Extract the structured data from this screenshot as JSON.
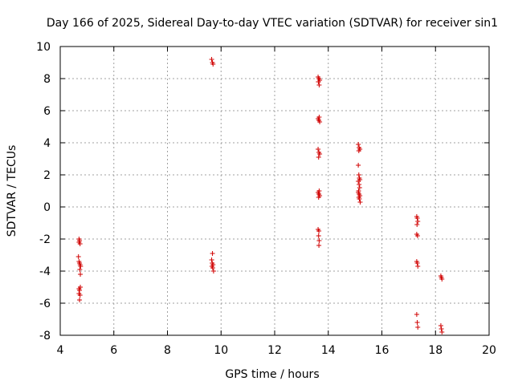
{
  "chart_data": {
    "type": "scatter",
    "title": "Day 166 of 2025, Sidereal Day-to-day VTEC variation (SDTVAR) for receiver sin1",
    "xlabel": "GPS time / hours",
    "ylabel": "SDTVAR / TECUs",
    "xlim": [
      4,
      20
    ],
    "ylim": [
      -8,
      10
    ],
    "xticks": [
      "4",
      "6",
      "8",
      "10",
      "12",
      "14",
      "16",
      "18",
      "20"
    ],
    "yticks": [
      "-8",
      "-6",
      "-4",
      "-2",
      "0",
      "2",
      "4",
      "6",
      "8",
      "10"
    ],
    "grid": true,
    "marker": "+",
    "color": "#d00000",
    "series": [
      {
        "name": "SDTVAR",
        "points": [
          [
            4.7,
            -2.0
          ],
          [
            4.72,
            -2.1
          ],
          [
            4.74,
            -2.3
          ],
          [
            4.7,
            -2.2
          ],
          [
            4.68,
            -3.1
          ],
          [
            4.7,
            -3.4
          ],
          [
            4.72,
            -3.5
          ],
          [
            4.74,
            -3.6
          ],
          [
            4.76,
            -3.7
          ],
          [
            4.73,
            -3.9
          ],
          [
            4.75,
            -4.2
          ],
          [
            4.7,
            -5.1
          ],
          [
            4.72,
            -5.2
          ],
          [
            4.75,
            -5.0
          ],
          [
            4.7,
            -5.4
          ],
          [
            4.74,
            -5.5
          ],
          [
            4.72,
            -5.8
          ],
          [
            9.65,
            9.2
          ],
          [
            9.68,
            9.0
          ],
          [
            9.7,
            8.9
          ],
          [
            9.68,
            -2.9
          ],
          [
            9.65,
            -3.3
          ],
          [
            9.67,
            -3.5
          ],
          [
            9.7,
            -3.6
          ],
          [
            9.66,
            -3.7
          ],
          [
            9.69,
            -3.8
          ],
          [
            9.72,
            -4.0
          ],
          [
            13.62,
            8.1
          ],
          [
            13.65,
            8.0
          ],
          [
            13.68,
            7.9
          ],
          [
            13.63,
            7.8
          ],
          [
            13.66,
            7.6
          ],
          [
            13.62,
            5.5
          ],
          [
            13.65,
            5.4
          ],
          [
            13.68,
            5.3
          ],
          [
            13.66,
            5.6
          ],
          [
            13.62,
            3.6
          ],
          [
            13.65,
            3.4
          ],
          [
            13.68,
            3.3
          ],
          [
            13.64,
            3.1
          ],
          [
            13.62,
            0.9
          ],
          [
            13.65,
            0.8
          ],
          [
            13.68,
            0.7
          ],
          [
            13.64,
            0.6
          ],
          [
            13.66,
            1.0
          ],
          [
            13.62,
            -1.4
          ],
          [
            13.65,
            -1.5
          ],
          [
            13.64,
            -1.8
          ],
          [
            13.66,
            -2.1
          ],
          [
            13.65,
            -2.4
          ],
          [
            15.12,
            3.9
          ],
          [
            15.15,
            3.7
          ],
          [
            15.18,
            3.6
          ],
          [
            15.14,
            3.5
          ],
          [
            15.12,
            2.6
          ],
          [
            15.14,
            2.0
          ],
          [
            15.16,
            1.8
          ],
          [
            15.18,
            1.7
          ],
          [
            15.12,
            1.6
          ],
          [
            15.15,
            1.4
          ],
          [
            15.17,
            1.2
          ],
          [
            15.13,
            1.0
          ],
          [
            15.12,
            0.9
          ],
          [
            15.15,
            0.8
          ],
          [
            15.18,
            0.7
          ],
          [
            15.14,
            0.6
          ],
          [
            15.16,
            0.5
          ],
          [
            15.19,
            0.3
          ],
          [
            17.3,
            -0.6
          ],
          [
            17.32,
            -0.7
          ],
          [
            17.34,
            -0.9
          ],
          [
            17.31,
            -1.1
          ],
          [
            17.3,
            -1.7
          ],
          [
            17.33,
            -1.8
          ],
          [
            17.3,
            -3.4
          ],
          [
            17.32,
            -3.5
          ],
          [
            17.34,
            -3.7
          ],
          [
            17.3,
            -6.7
          ],
          [
            17.32,
            -7.2
          ],
          [
            17.34,
            -7.5
          ],
          [
            18.2,
            -4.3
          ],
          [
            18.22,
            -4.4
          ],
          [
            18.24,
            -4.5
          ],
          [
            18.2,
            -7.4
          ],
          [
            18.22,
            -7.6
          ],
          [
            18.24,
            -7.8
          ]
        ]
      }
    ]
  }
}
